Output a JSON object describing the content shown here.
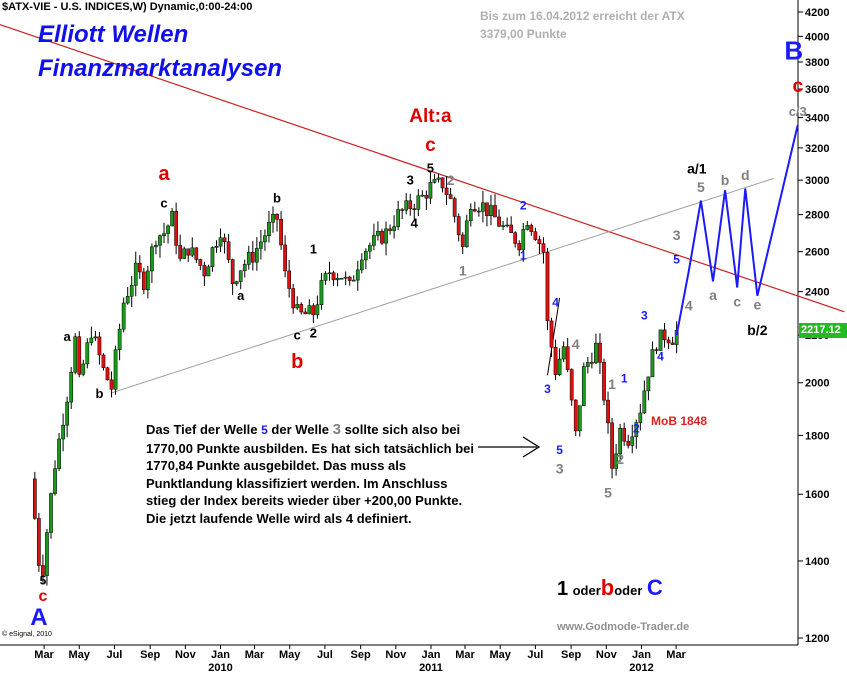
{
  "header": {
    "symbol": "$ATX-VIE - U.S. INDICES,W) Dynamic,0:00-24:00",
    "notice_line1": "Bis zum 16.04.2012 erreicht der ATX",
    "notice_line2": "3379,00 Punkte",
    "brand_line1": "Elliott Wellen",
    "brand_line2": "Finanzmarktanalysen"
  },
  "annotation": {
    "text_before_5": "Das Tief der Welle ",
    "five": "5",
    "text_middle": " der Welle ",
    "three": "3",
    "text_after": " sollte sich also bei 1770,00 Punkte ausbilden. Es hat sich tatsächlich bei 1770,84 Punkte ausgebildet. Das muss als Punktlandung klassifiziert werden. Im Anschluss stieg der Index bereits wieder über +200,00 Punkte. Die jetzt laufende Welle wird als 4 definiert."
  },
  "mob": "MoB 1848",
  "choice": {
    "one": "1",
    "oder1": "oder",
    "b": "b",
    "oder2": "oder",
    "c": "C"
  },
  "footer": {
    "site": "www.Godmode-Trader.de",
    "esignal": "© eSignal, 2010"
  },
  "colors": {
    "red": "#e00000",
    "blue": "#1a1aff",
    "black": "#000000",
    "gray": "#808080",
    "price_tag": "#22bb22",
    "trendline": "#cc2020",
    "channel": "#a0a0a0"
  },
  "chart_data": {
    "type": "candlestick",
    "y_scale": "log",
    "ylim": [
      1200,
      4300
    ],
    "y_ticks": [
      1200,
      1400,
      1600,
      1800,
      2000,
      2200,
      2400,
      2600,
      2800,
      3000,
      3200,
      3400,
      3600,
      3800,
      4000,
      4200
    ],
    "last_price": "2217.12",
    "x_ticks": [
      "Mar",
      "May",
      "Jul",
      "Sep",
      "Nov",
      "Jan",
      "Mar",
      "May",
      "Jul",
      "Sep",
      "Nov",
      "Jan",
      "Mar",
      "May",
      "Jul",
      "Sep",
      "Nov",
      "Jan",
      "Mar"
    ],
    "year_labels": [
      "2010",
      "2011",
      "2012"
    ],
    "price_path": [
      [
        "2009-02-20",
        1650
      ],
      [
        "2009-03-06",
        1400
      ],
      [
        "2009-03-13",
        1380
      ],
      [
        "2009-04-03",
        1700
      ],
      [
        "2009-04-24",
        1950
      ],
      [
        "2009-05-08",
        2180
      ],
      [
        "2009-05-15",
        2000
      ],
      [
        "2009-06-05",
        2220
      ],
      [
        "2009-06-26",
        2050
      ],
      [
        "2009-07-10",
        1980
      ],
      [
        "2009-07-31",
        2350
      ],
      [
        "2009-08-21",
        2500
      ],
      [
        "2009-09-04",
        2450
      ],
      [
        "2009-09-25",
        2680
      ],
      [
        "2009-10-09",
        2700
      ],
      [
        "2009-10-23",
        2780
      ],
      [
        "2009-11-06",
        2550
      ],
      [
        "2009-11-20",
        2620
      ],
      [
        "2009-12-04",
        2560
      ],
      [
        "2009-12-18",
        2500
      ],
      [
        "2010-01-15",
        2720
      ],
      [
        "2010-02-05",
        2450
      ],
      [
        "2010-02-19",
        2520
      ],
      [
        "2010-03-12",
        2580
      ],
      [
        "2010-04-09",
        2730
      ],
      [
        "2010-04-23",
        2780
      ],
      [
        "2010-05-07",
        2480
      ],
      [
        "2010-05-28",
        2300
      ],
      [
        "2010-06-04",
        2290
      ],
      [
        "2010-06-25",
        2300
      ],
      [
        "2010-07-09",
        2420
      ],
      [
        "2010-07-23",
        2500
      ],
      [
        "2010-08-13",
        2480
      ],
      [
        "2010-08-27",
        2420
      ],
      [
        "2010-09-17",
        2600
      ],
      [
        "2010-10-08",
        2650
      ],
      [
        "2010-10-29",
        2700
      ],
      [
        "2010-11-19",
        2800
      ],
      [
        "2010-12-10",
        2850
      ],
      [
        "2010-12-31",
        2900
      ],
      [
        "2011-01-14",
        2960
      ],
      [
        "2011-02-04",
        2980
      ],
      [
        "2011-02-18",
        2880
      ],
      [
        "2011-03-11",
        2620
      ],
      [
        "2011-03-25",
        2880
      ],
      [
        "2011-04-15",
        2850
      ],
      [
        "2011-05-06",
        2780
      ],
      [
        "2011-05-27",
        2700
      ],
      [
        "2011-06-17",
        2650
      ],
      [
        "2011-07-01",
        2780
      ],
      [
        "2011-07-15",
        2700
      ],
      [
        "2011-07-29",
        2600
      ],
      [
        "2011-08-05",
        2250
      ],
      [
        "2011-08-19",
        2050
      ],
      [
        "2011-09-02",
        2150
      ],
      [
        "2011-09-23",
        1800
      ],
      [
        "2011-10-07",
        2050
      ],
      [
        "2011-10-28",
        2150
      ],
      [
        "2011-11-11",
        1950
      ],
      [
        "2011-11-25",
        1690
      ],
      [
        "2011-12-09",
        1820
      ],
      [
        "2011-12-23",
        1790
      ],
      [
        "2012-01-13",
        1900
      ],
      [
        "2012-01-27",
        2050
      ],
      [
        "2012-02-10",
        2170
      ],
      [
        "2012-02-24",
        2200
      ],
      [
        "2012-03-09",
        2190
      ],
      [
        "2012-03-16",
        2217
      ]
    ],
    "projection": [
      [
        "2012-03-16",
        2200
      ],
      [
        "2012-04-06",
        2500
      ],
      [
        "2012-04-27",
        2880
      ],
      [
        "2012-05-18",
        2450
      ],
      [
        "2012-06-08",
        2940
      ],
      [
        "2012-06-29",
        2420
      ],
      [
        "2012-07-13",
        2950
      ],
      [
        "2012-08-03",
        2380
      ],
      [
        "2012-10-12",
        3350
      ]
    ],
    "trendline": [
      [
        "2008-12-01",
        4140
      ],
      [
        "2013-01-01",
        2305
      ]
    ],
    "channel_line": [
      [
        "2009-07-10",
        1960
      ],
      [
        "2012-08-31",
        3010
      ]
    ],
    "oscillation_line": [
      [
        "2011-08-05",
        2030
      ],
      [
        "2011-08-26",
        2370
      ]
    ],
    "wave_labels": [
      {
        "t": "5",
        "d": "2009-03-13",
        "v": 1335,
        "c": "black",
        "s": 12
      },
      {
        "t": "c",
        "d": "2009-03-13",
        "v": 1292,
        "c": "red",
        "s": 16
      },
      {
        "t": "A",
        "d": "2009-03-06",
        "v": 1232,
        "c": "blue",
        "s": 24
      },
      {
        "t": "a",
        "d": "2009-04-24",
        "v": 2175,
        "c": "black",
        "s": 13
      },
      {
        "t": "b",
        "d": "2009-06-19",
        "v": 1940,
        "c": "black",
        "s": 13
      },
      {
        "t": "a",
        "d": "2009-10-09",
        "v": 3000,
        "c": "red",
        "s": 20
      },
      {
        "t": "c",
        "d": "2009-10-09",
        "v": 2840,
        "c": "black",
        "s": 13
      },
      {
        "t": "b",
        "d": "2010-04-23",
        "v": 2870,
        "c": "black",
        "s": 13
      },
      {
        "t": "a",
        "d": "2010-02-19",
        "v": 2360,
        "c": "black",
        "s": 13
      },
      {
        "t": "c",
        "d": "2010-05-28",
        "v": 2180,
        "c": "black",
        "s": 13
      },
      {
        "t": "b",
        "d": "2010-05-28",
        "v": 2060,
        "c": "red",
        "s": 20
      },
      {
        "t": "1",
        "d": "2010-06-25",
        "v": 2590,
        "c": "black",
        "s": 13
      },
      {
        "t": "2",
        "d": "2010-06-25",
        "v": 2190,
        "c": "black",
        "s": 13
      },
      {
        "t": "Alt:a",
        "d": "2011-01-14",
        "v": 3370,
        "c": "red",
        "s": 19
      },
      {
        "t": "c",
        "d": "2011-01-14",
        "v": 3180,
        "c": "red",
        "s": 19
      },
      {
        "t": "5",
        "d": "2011-01-14",
        "v": 3045,
        "c": "black",
        "s": 13
      },
      {
        "t": "3",
        "d": "2010-12-10",
        "v": 2975,
        "c": "black",
        "s": 13
      },
      {
        "t": "4",
        "d": "2010-12-17",
        "v": 2730,
        "c": "black",
        "s": 13
      },
      {
        "t": "2",
        "d": "2011-02-18",
        "v": 2970,
        "c": "gray",
        "s": 14
      },
      {
        "t": "1",
        "d": "2011-03-11",
        "v": 2480,
        "c": "gray",
        "s": 14
      },
      {
        "t": "2",
        "d": "2011-06-24",
        "v": 2830,
        "c": "blue",
        "s": 12
      },
      {
        "t": "1",
        "d": "2011-06-24",
        "v": 2560,
        "c": "blue",
        "s": 12
      },
      {
        "t": "4",
        "d": "2011-08-19",
        "v": 2330,
        "c": "blue",
        "s": 12
      },
      {
        "t": "3",
        "d": "2011-08-05",
        "v": 1960,
        "c": "blue",
        "s": 12
      },
      {
        "t": "4",
        "d": "2011-09-23",
        "v": 2140,
        "c": "gray",
        "s": 14
      },
      {
        "t": "5",
        "d": "2011-08-26",
        "v": 1735,
        "c": "blue",
        "s": 12
      },
      {
        "t": "3",
        "d": "2011-08-26",
        "v": 1668,
        "c": "gray",
        "s": 14
      },
      {
        "t": "1",
        "d": "2011-11-25",
        "v": 1975,
        "c": "gray",
        "s": 14
      },
      {
        "t": "2",
        "d": "2011-12-09",
        "v": 1700,
        "c": "gray",
        "s": 14
      },
      {
        "t": "5",
        "d": "2011-11-18",
        "v": 1590,
        "c": "gray",
        "s": 14
      },
      {
        "t": "1",
        "d": "2011-12-16",
        "v": 2000,
        "c": "blue",
        "s": 12
      },
      {
        "t": "2",
        "d": "2012-01-06",
        "v": 1810,
        "c": "blue",
        "s": 12
      },
      {
        "t": "3",
        "d": "2012-01-20",
        "v": 2270,
        "c": "blue",
        "s": 12
      },
      {
        "t": "4",
        "d": "2012-02-17",
        "v": 2090,
        "c": "blue",
        "s": 12
      },
      {
        "t": "3",
        "d": "2012-03-16",
        "v": 2660,
        "c": "gray",
        "s": 14
      },
      {
        "t": "5",
        "d": "2012-03-16",
        "v": 2540,
        "c": "blue",
        "s": 12
      },
      {
        "t": "4",
        "d": "2012-04-06",
        "v": 2310,
        "c": "gray",
        "s": 14
      },
      {
        "t": "a/1",
        "d": "2012-04-20",
        "v": 3040,
        "c": "black",
        "s": 14
      },
      {
        "t": "5",
        "d": "2012-04-27",
        "v": 2930,
        "c": "gray",
        "s": 14
      },
      {
        "t": "a",
        "d": "2012-05-18",
        "v": 2360,
        "c": "gray",
        "s": 14
      },
      {
        "t": "b",
        "d": "2012-06-08",
        "v": 2970,
        "c": "gray",
        "s": 14
      },
      {
        "t": "c",
        "d": "2012-06-29",
        "v": 2330,
        "c": "gray",
        "s": 14
      },
      {
        "t": "d",
        "d": "2012-07-13",
        "v": 3000,
        "c": "gray",
        "s": 14
      },
      {
        "t": "e",
        "d": "2012-08-03",
        "v": 2315,
        "c": "gray",
        "s": 14
      },
      {
        "t": "b/2",
        "d": "2012-08-03",
        "v": 2200,
        "c": "black",
        "s": 14
      },
      {
        "t": "B",
        "d": "2012-10-05",
        "v": 3820,
        "c": "blue",
        "s": 26
      },
      {
        "t": "c",
        "d": "2012-10-12",
        "v": 3580,
        "c": "red",
        "s": 19
      },
      {
        "t": "c/3",
        "d": "2012-10-12",
        "v": 3410,
        "c": "gray",
        "s": 13
      }
    ]
  }
}
